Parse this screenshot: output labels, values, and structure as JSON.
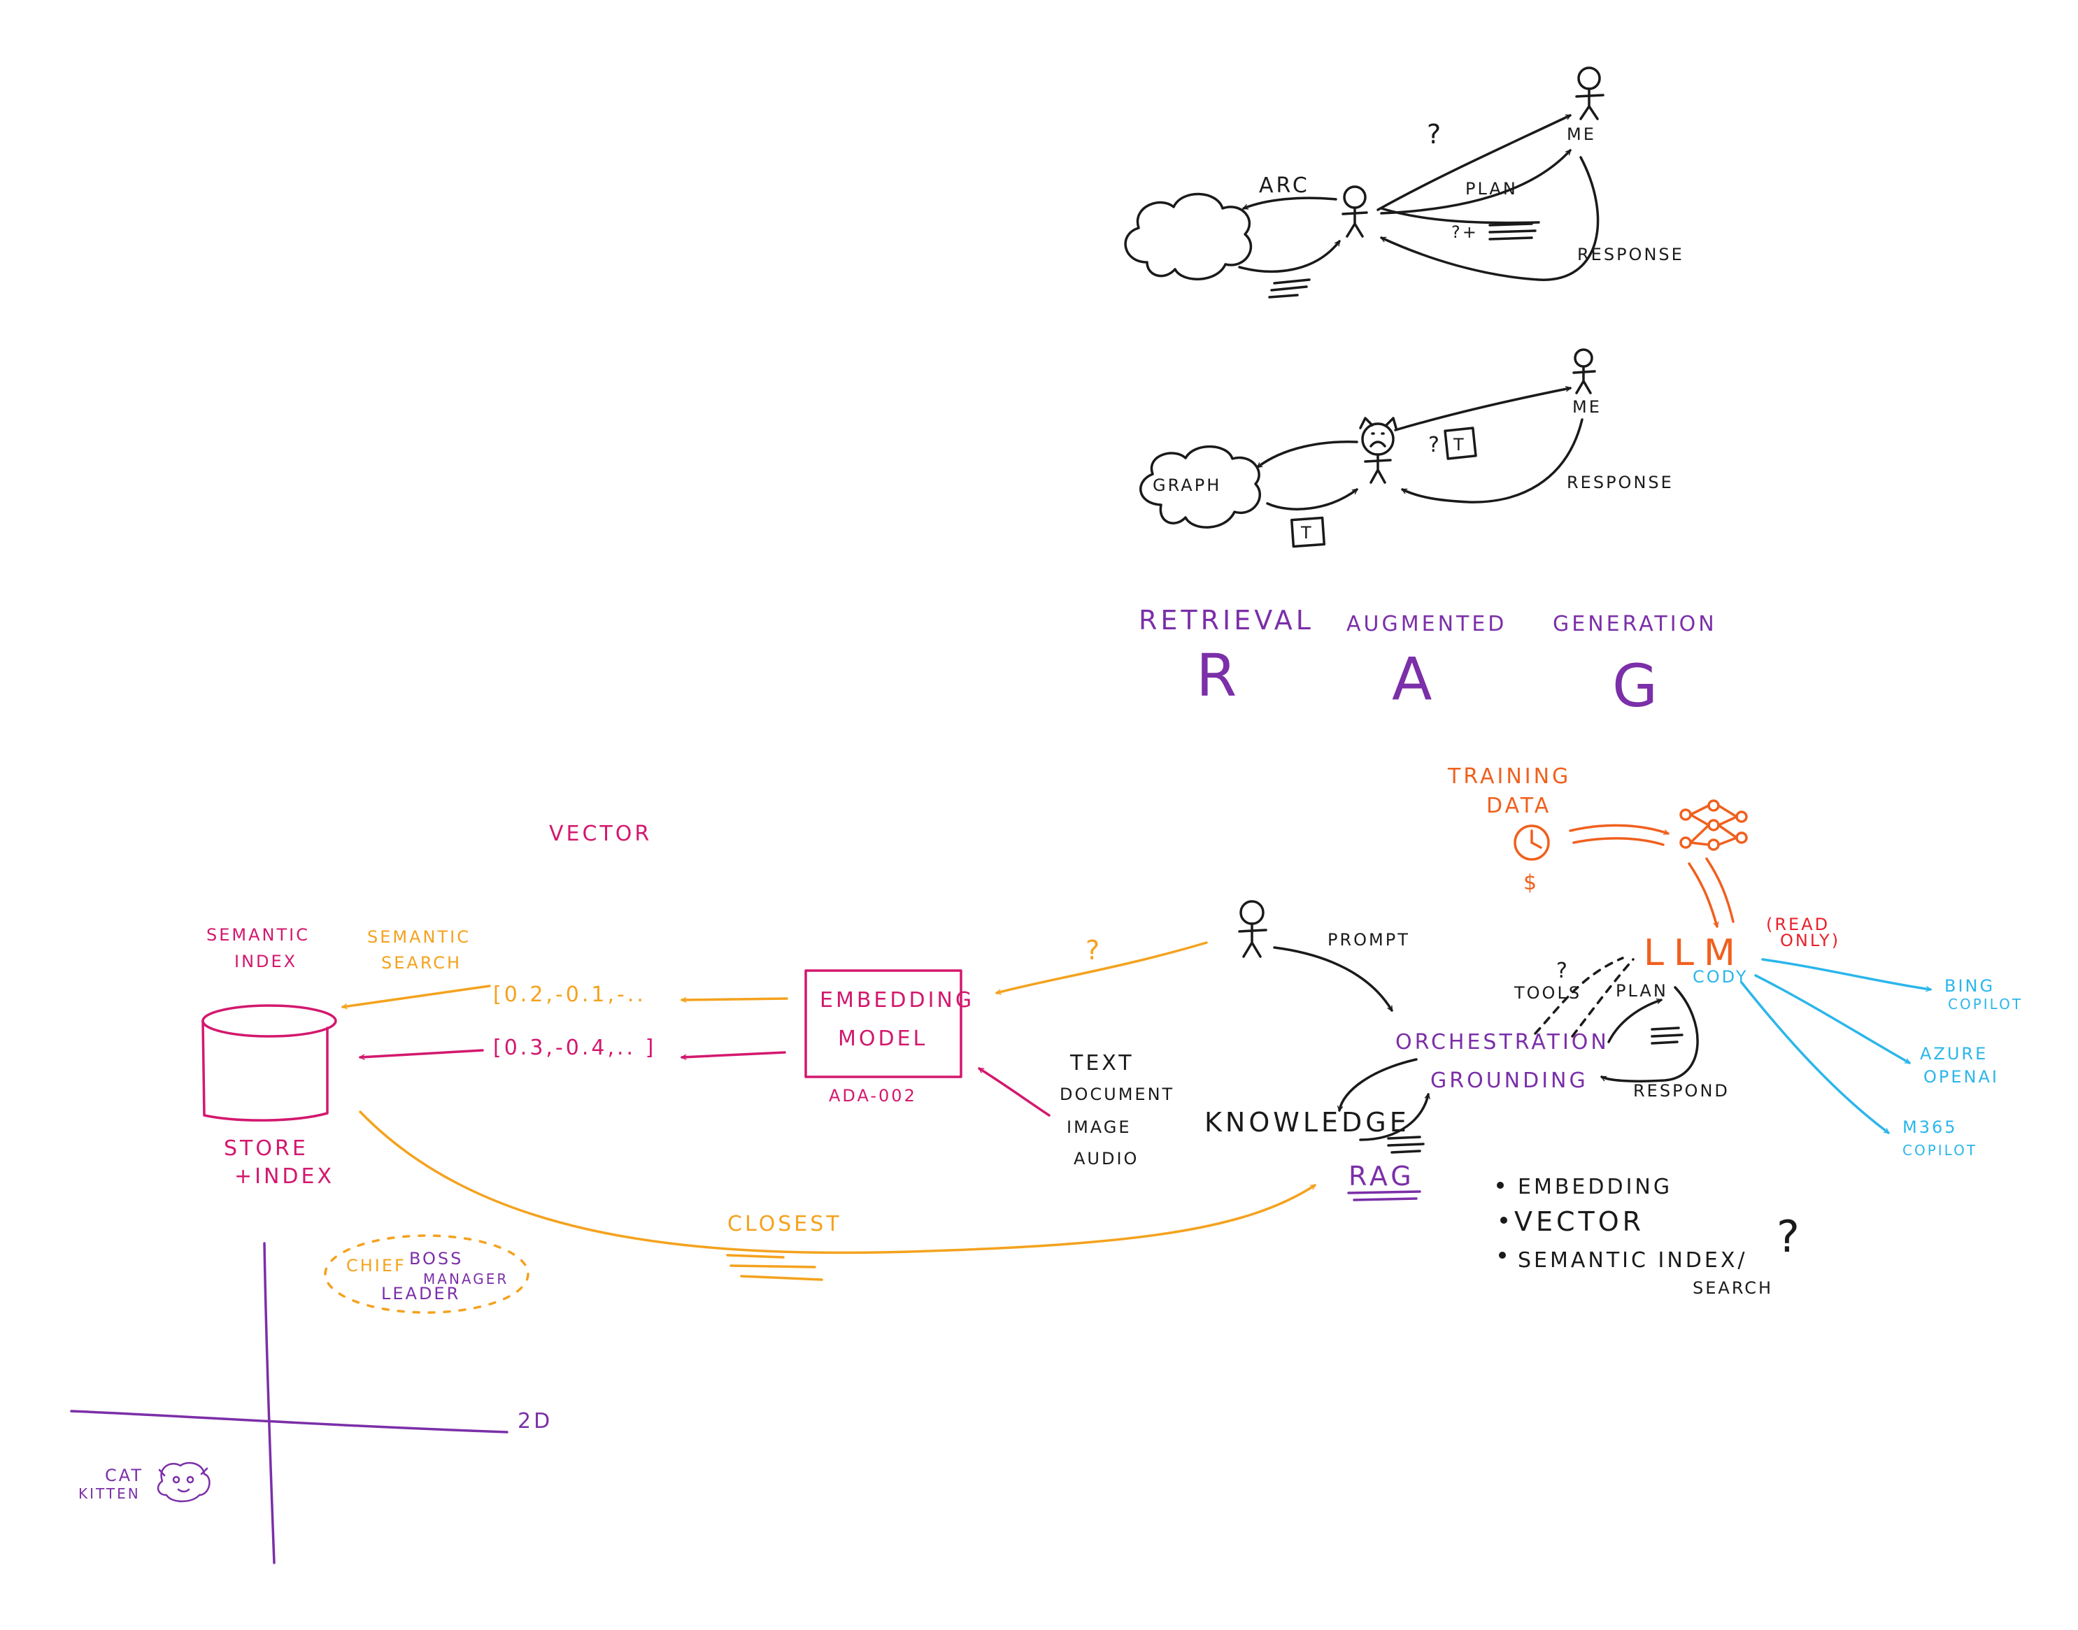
{
  "colors": {
    "black": "#1a1a1a",
    "purple": "#7b2fa8",
    "magenta": "#d3186e",
    "orange": "#f4a21e",
    "red_orange": "#f0601e",
    "red": "#e8202a",
    "cyan": "#2bb6ea"
  },
  "top_scene": {
    "arc_label": "ARC",
    "question_mark": "?",
    "me_label": "ME",
    "plan_label": "PLAN",
    "q_plus_label": "?+",
    "response_label": "RESPONSE"
  },
  "graph_scene": {
    "graph_label": "GRAPH",
    "me_label": "ME",
    "question_mark": "?",
    "token_label": "T",
    "response_label": "RESPONSE"
  },
  "rag_acronym": {
    "words": [
      "RETRIEVAL",
      "AUGMENTED",
      "GENERATION"
    ],
    "letters": [
      "R",
      "A",
      "G"
    ]
  },
  "vector_section": {
    "vector_title": "VECTOR",
    "semantic_index": [
      "SEMANTIC",
      "INDEX"
    ],
    "semantic_search": [
      "SEMANTIC",
      "SEARCH"
    ],
    "vector_orange": "[0.2,-0.1,-..",
    "vector_magenta": "[0.3,-0.4,..  ]",
    "store_label": [
      "STORE",
      "+INDEX"
    ],
    "embedding_box": [
      "EMBEDDING",
      "MODEL"
    ],
    "model_name": "ADA-002",
    "inputs": [
      "TEXT",
      "DOCUMENT",
      "IMAGE",
      "AUDIO"
    ],
    "question_mark": "?",
    "closest_label": "CLOSEST"
  },
  "orchestration": {
    "prompt_label": "PROMPT",
    "orchestration_label": "ORCHESTRATION",
    "grounding_label": "GROUNDING",
    "knowledge_label": "KNOWLEDGE",
    "rag_label": "RAG",
    "tools_label": "TOOLS",
    "tools_question": "?",
    "plan_label": "PLAN",
    "respond_label": "RESPOND"
  },
  "llm_section": {
    "training_data": [
      "TRAINING",
      "DATA"
    ],
    "dollar": "$",
    "llm_label": "LLM",
    "read_only": [
      "(READ",
      "ONLY)"
    ],
    "cody_label": "CODY",
    "targets": [
      [
        "BING",
        "COPILOT"
      ],
      [
        "AZURE",
        "OPENAI"
      ],
      [
        "M365",
        "COPILOT"
      ]
    ]
  },
  "bullets": {
    "items": [
      "EMBEDDING",
      "VECTOR",
      "SEMANTIC INDEX/"
    ],
    "search_word": "SEARCH",
    "question_mark": "?"
  },
  "plot_2d": {
    "axis_label": "2D",
    "cluster_words": [
      "CHIEF",
      "BOSS",
      "MANAGER",
      "LEADER"
    ],
    "cat_labels": [
      "CAT",
      "KITTEN"
    ]
  }
}
